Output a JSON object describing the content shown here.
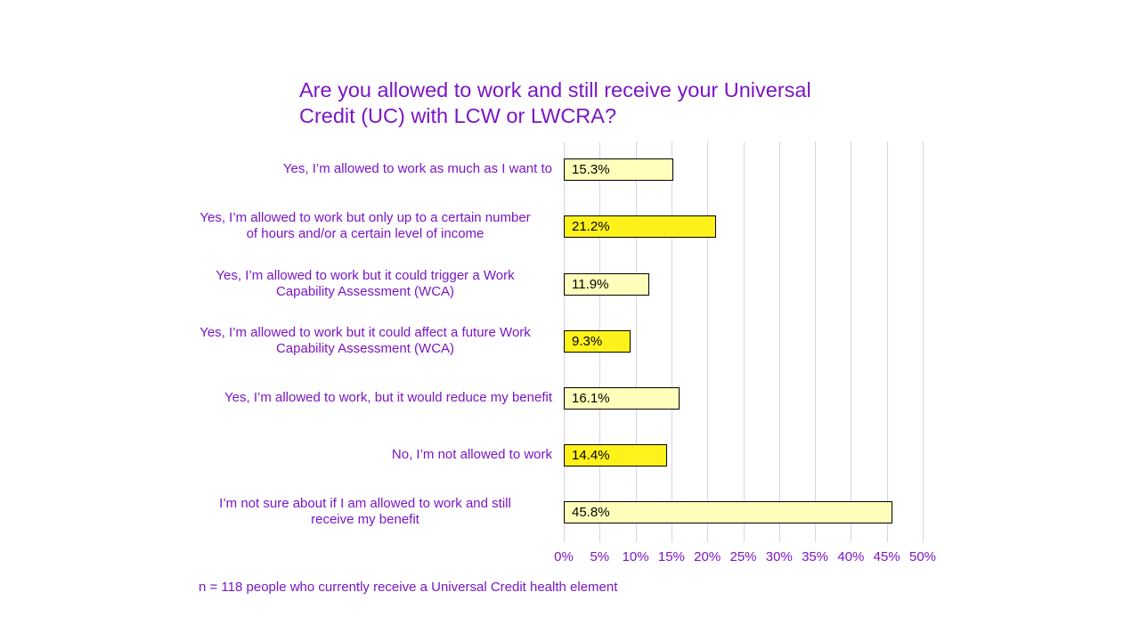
{
  "chart_data": {
    "type": "bar",
    "orientation": "horizontal",
    "title": "Are you allowed to work and still receive your Universal Credit (UC) with LCW or LWCRA?",
    "title_lines": [
      "Are you allowed to work and still receive your Universal",
      "Credit (UC) with LCW or LWCRA?"
    ],
    "categories": [
      "Yes, I’m allowed to work as much as I want to",
      "Yes, I’m allowed to work but only up to a certain number of hours and/or a certain level of income",
      "Yes, I’m allowed to work but it could trigger a Work Capability Assessment (WCA)",
      "Yes, I’m allowed to work but it could affect a future Work Capability Assessment (WCA)",
      "Yes, I’m allowed to work, but it would reduce my benefit",
      "No, I’m not allowed to work",
      "I’m not sure about if I am allowed to work and still receive my benefit"
    ],
    "category_lines": [
      [
        "Yes, I’m allowed to work as much as I want to"
      ],
      [
        "Yes, I’m allowed to work but only up to a certain number",
        "of hours and/or a certain level of income"
      ],
      [
        "Yes, I’m allowed to work but it could trigger a Work",
        "Capability Assessment (WCA)"
      ],
      [
        "Yes, I’m allowed to work but it could affect a future Work",
        "Capability Assessment (WCA)"
      ],
      [
        "Yes, I’m allowed to work, but it would reduce my benefit"
      ],
      [
        "No, I’m not allowed to work"
      ],
      [
        "I’m not sure about if I am allowed to work and still",
        "receive my benefit"
      ]
    ],
    "values": [
      15.3,
      21.2,
      11.9,
      9.3,
      16.1,
      14.4,
      45.8
    ],
    "data_labels": [
      "15.3%",
      "21.2%",
      "11.9%",
      "9.3%",
      "16.1%",
      "14.4%",
      "45.8%"
    ],
    "bar_colors": [
      "#ffffbb",
      "#fff21a",
      "#ffffbb",
      "#fff21a",
      "#ffffbb",
      "#fff21a",
      "#ffffbb"
    ],
    "xlim": [
      0,
      50
    ],
    "xticks": [
      "0%",
      "5%",
      "10%",
      "15%",
      "20%",
      "25%",
      "30%",
      "35%",
      "40%",
      "45%",
      "50%"
    ],
    "xlabel": "",
    "ylabel": "",
    "grid": "vertical",
    "legend": null,
    "footnote": "n = 118 people who currently receive a Universal Credit health element"
  },
  "colors": {
    "text": "#7a16c4",
    "grid": "#dcd0ee",
    "bar_light": "#ffffbb",
    "bar_dark": "#fff21a"
  }
}
